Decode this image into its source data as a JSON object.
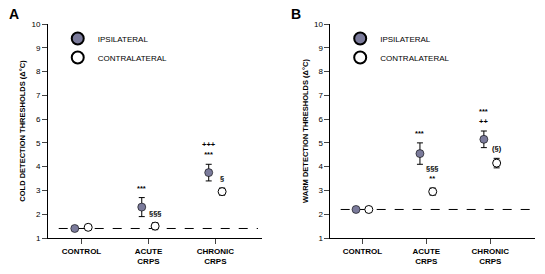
{
  "chart_data": [
    {
      "type": "scatter",
      "title": "A",
      "y_label": "COLD DETECTION THRESHOLDS (Δ°C)",
      "categories": [
        "CONTROL",
        "ACUTE\nCRPS",
        "CHRONIC\nCRPS"
      ],
      "series": [
        {
          "name": "IPSILATERAL",
          "color": "#7b7b9b",
          "marker": "circle",
          "values": [
            1.4,
            2.3,
            3.75
          ],
          "errors": [
            0.07,
            0.4,
            0.35
          ]
        },
        {
          "name": "CONTRALATERAL",
          "color": "white",
          "marker": "circle",
          "values": [
            1.45,
            1.5,
            2.95
          ],
          "errors": [
            0.07,
            0.15,
            0.15
          ]
        }
      ],
      "reference_line": 1.4,
      "annotations": [
        {
          "series": "IPSILATERAL",
          "category": "ACUTE\nCRPS",
          "text": "***"
        },
        {
          "series": "IPSILATERAL",
          "category": "CHRONIC\nCRPS",
          "text": "+++\n***"
        },
        {
          "series": "CONTRALATERAL",
          "category": "ACUTE\nCRPS",
          "text": "§§§"
        },
        {
          "series": "CONTRALATERAL",
          "category": "CHRONIC\nCRPS",
          "text": "§"
        }
      ],
      "ylim": [
        1,
        10
      ],
      "yticks": [
        1,
        2,
        3,
        4,
        5,
        6,
        7,
        8,
        9,
        10
      ],
      "grid": false,
      "legend": "upper left"
    },
    {
      "type": "scatter",
      "title": "B",
      "y_label": "WARM DETECTION THRESHOLDS (Δ°C)",
      "categories": [
        "CONTROL",
        "ACUTE\nCRPS",
        "CHRONIC\nCRPS"
      ],
      "series": [
        {
          "name": "IPSILATERAL",
          "color": "#7b7b9b",
          "marker": "circle",
          "values": [
            2.2,
            4.55,
            5.15
          ],
          "errors": [
            0.07,
            0.45,
            0.35
          ]
        },
        {
          "name": "CONTRALATERAL",
          "color": "white",
          "marker": "circle",
          "values": [
            2.2,
            2.95,
            4.15
          ],
          "errors": [
            0.07,
            0.15,
            0.2
          ]
        }
      ],
      "reference_line": 2.2,
      "annotations": [
        {
          "series": "IPSILATERAL",
          "category": "ACUTE\nCRPS",
          "text": "***"
        },
        {
          "series": "IPSILATERAL",
          "category": "CHRONIC\nCRPS",
          "text": "***\n++"
        },
        {
          "series": "CONTRALATERAL",
          "category": "ACUTE\nCRPS",
          "text": "§§§\n**"
        },
        {
          "series": "CONTRALATERAL",
          "category": "CHRONIC\nCRPS",
          "text": "(§)"
        }
      ],
      "ylim": [
        1,
        10
      ],
      "yticks": [
        1,
        2,
        3,
        4,
        5,
        6,
        7,
        8,
        9,
        10
      ],
      "grid": false,
      "legend": "upper left"
    }
  ]
}
